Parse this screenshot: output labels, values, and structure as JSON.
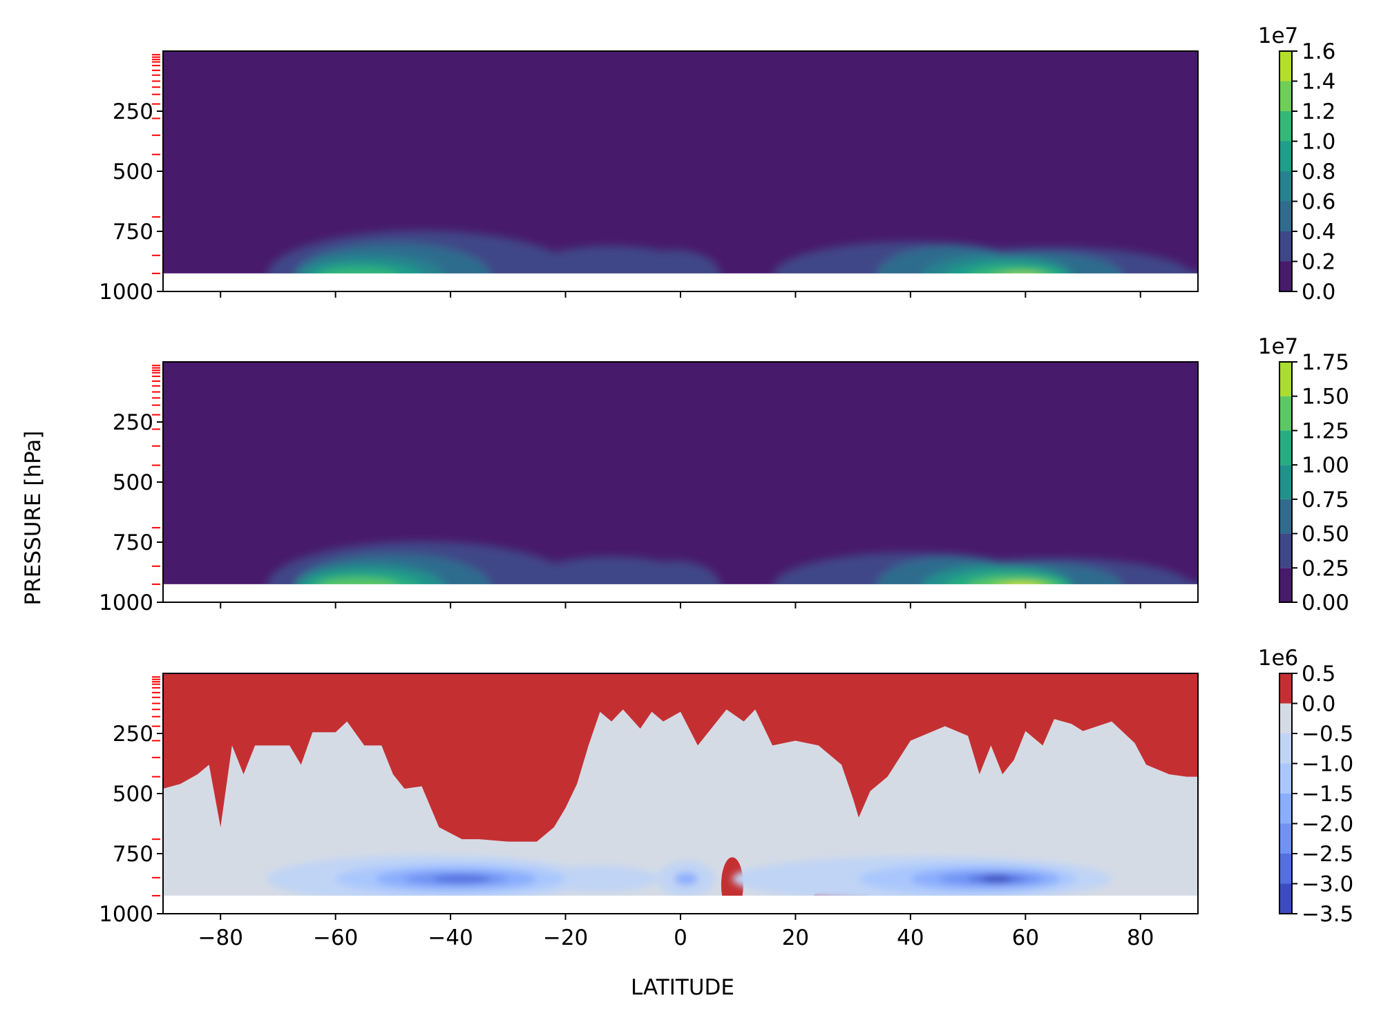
{
  "figure": {
    "ylabel": "PRESSURE [hPa]",
    "xlabel": "LATITUDE"
  },
  "chart_data": [
    {
      "type": "contourf",
      "panel": "top",
      "xlim": [
        -90,
        90
      ],
      "ylim": [
        1000,
        0
      ],
      "y_ticks": [
        250,
        500,
        750,
        1000
      ],
      "x_ticks": [
        -80,
        -60,
        -40,
        -20,
        0,
        20,
        40,
        60,
        80
      ],
      "x_ticklabels_visible": false,
      "colormap": "viridis",
      "colorbar": {
        "offset_label": "1e7",
        "levels": [
          0.0,
          0.2,
          0.4,
          0.6,
          0.8,
          1.0,
          1.2,
          1.4,
          1.6
        ],
        "tick_labels": [
          "0.0",
          "0.2",
          "0.4",
          "0.6",
          "0.8",
          "1.0",
          "1.2",
          "1.4",
          "1.6"
        ],
        "colors": [
          "#481a6c",
          "#3f4788",
          "#2f6c8e",
          "#26828e",
          "#1f9e89",
          "#35b779",
          "#6ece58",
          "#b5de2b"
        ]
      },
      "surface_pressure": 925,
      "maxima": [
        {
          "lat": -55,
          "pressure": 925,
          "value": 1.25
        },
        {
          "lat": 59,
          "pressure": 925,
          "value": 1.5
        }
      ]
    },
    {
      "type": "contourf",
      "panel": "middle",
      "xlim": [
        -90,
        90
      ],
      "ylim": [
        1000,
        0
      ],
      "y_ticks": [
        250,
        500,
        750,
        1000
      ],
      "x_ticks": [
        -80,
        -60,
        -40,
        -20,
        0,
        20,
        40,
        60,
        80
      ],
      "x_ticklabels_visible": false,
      "colormap": "viridis",
      "colorbar": {
        "offset_label": "1e7",
        "levels": [
          0.0,
          0.25,
          0.5,
          0.75,
          1.0,
          1.25,
          1.5,
          1.75
        ],
        "tick_labels": [
          "0.00",
          "0.25",
          "0.50",
          "0.75",
          "1.00",
          "1.25",
          "1.50",
          "1.75"
        ],
        "colors": [
          "#481a6c",
          "#3f4788",
          "#2f6c8e",
          "#21918c",
          "#27ad81",
          "#5cc863",
          "#aadc32",
          "#fde725"
        ]
      },
      "surface_pressure": 925,
      "maxima": [
        {
          "lat": -55,
          "pressure": 925,
          "value": 1.3
        },
        {
          "lat": 59,
          "pressure": 925,
          "value": 1.6
        }
      ]
    },
    {
      "type": "contourf",
      "panel": "bottom",
      "xlim": [
        -90,
        90
      ],
      "ylim": [
        1000,
        0
      ],
      "y_ticks": [
        250,
        500,
        750,
        1000
      ],
      "x_ticks": [
        -80,
        -60,
        -40,
        -20,
        0,
        20,
        40,
        60,
        80
      ],
      "x_ticklabels": [
        "−80",
        "−60",
        "−40",
        "−20",
        "0",
        "20",
        "40",
        "60",
        "80"
      ],
      "x_ticklabels_visible": true,
      "colormap": "coolwarm",
      "colorbar": {
        "offset_label": "1e6",
        "levels": [
          -3.5,
          -3.0,
          -2.5,
          -2.0,
          -1.5,
          -1.0,
          -0.5,
          0.0,
          0.5
        ],
        "tick_labels": [
          "−3.5",
          "−3.0",
          "−2.5",
          "−2.0",
          "−1.5",
          "−1.0",
          "−0.5",
          "0.0",
          "0.5"
        ],
        "colors": [
          "#3b4cc0",
          "#5470de",
          "#6f92f3",
          "#8badfd",
          "#aac7fd",
          "#c0d4f5",
          "#d5dbe5",
          "#c43032"
        ]
      },
      "surface_pressure": 925,
      "minima": [
        {
          "lat": -39,
          "pressure": 850,
          "value": -2.8
        },
        {
          "lat": 55,
          "pressure": 850,
          "value": -3.3
        }
      ]
    }
  ],
  "model_levels": [
    15,
    25,
    35,
    45,
    60,
    80,
    100,
    125,
    150,
    180,
    220,
    280,
    350,
    430,
    690,
    850,
    925
  ]
}
